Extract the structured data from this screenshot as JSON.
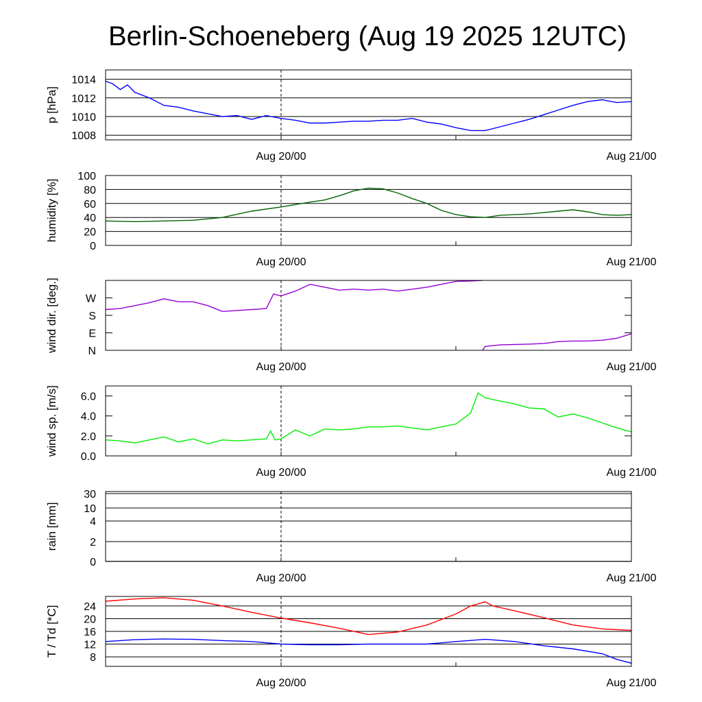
{
  "title": "Berlin-Schoeneberg (Aug 19 2025 12UTC)",
  "x_tick_labels": [
    "Aug 20/00",
    "Aug 21/00"
  ],
  "chart_data": [
    {
      "type": "line",
      "ylabel": "p [hPa]",
      "ylim": [
        1007.5,
        1015
      ],
      "yticks": [
        1008,
        1010,
        1012,
        1014
      ],
      "ytick_labels": [
        "1008",
        "1010",
        "1012",
        "1014"
      ],
      "grid": true,
      "x_unit": "hours since Aug 19 12UTC",
      "xlim": [
        0,
        36
      ],
      "series": [
        {
          "color": "#0000ff",
          "x": [
            0,
            0.5,
            1,
            1.5,
            2,
            3,
            4,
            5,
            6,
            7,
            8,
            9,
            10,
            11,
            12,
            13,
            14,
            15,
            16,
            17,
            18,
            19,
            20,
            21,
            22,
            23,
            24,
            25,
            26,
            27,
            28,
            29,
            30,
            31,
            32,
            33,
            34,
            35,
            36
          ],
          "y": [
            1013.8,
            1013.5,
            1012.9,
            1013.4,
            1012.6,
            1012.0,
            1011.2,
            1011.0,
            1010.6,
            1010.3,
            1010.0,
            1010.1,
            1009.7,
            1010.1,
            1009.8,
            1009.6,
            1009.3,
            1009.3,
            1009.4,
            1009.5,
            1009.5,
            1009.6,
            1009.6,
            1009.8,
            1009.4,
            1009.2,
            1008.8,
            1008.5,
            1008.5,
            1008.9,
            1009.3,
            1009.7,
            1010.2,
            1010.7,
            1011.2,
            1011.6,
            1011.8,
            1011.5,
            1011.6
          ]
        }
      ]
    },
    {
      "type": "line",
      "ylabel": "humidity [%]",
      "ylim": [
        0,
        100
      ],
      "yticks": [
        0,
        20,
        40,
        60,
        80,
        100
      ],
      "ytick_labels": [
        "0",
        "20",
        "40",
        "60",
        "80",
        "100"
      ],
      "grid": true,
      "xlim": [
        0,
        36
      ],
      "series": [
        {
          "color": "#006400",
          "x": [
            0,
            2,
            4,
            6,
            8,
            10,
            12,
            14,
            15,
            16,
            17,
            18,
            19,
            20,
            21,
            22,
            23,
            24,
            25,
            26,
            27,
            28,
            29,
            30,
            31,
            32,
            33,
            34,
            35,
            36
          ],
          "y": [
            35,
            34,
            35,
            36,
            40,
            49,
            55,
            62,
            65,
            71,
            78,
            82,
            81,
            75,
            67,
            60,
            50,
            44,
            41,
            40,
            43,
            44,
            45,
            47,
            49,
            51,
            48,
            44,
            43,
            44
          ]
        }
      ]
    },
    {
      "type": "line",
      "ylabel": "wind dir. [deg.]",
      "ylim": [
        0,
        360
      ],
      "yticks": [
        0,
        90,
        180,
        270
      ],
      "ytick_labels": [
        "N",
        "E",
        "S",
        "W"
      ],
      "grid": false,
      "xlim": [
        0,
        36
      ],
      "series": [
        {
          "color": "#9400d3",
          "x": [
            0,
            1,
            2,
            3,
            4,
            5,
            6,
            7,
            8,
            9,
            10,
            11,
            11.5,
            12,
            13,
            14,
            15,
            16,
            17,
            18,
            19,
            20,
            21,
            22,
            23,
            24,
            25,
            25.8
          ],
          "y": [
            210,
            215,
            230,
            245,
            265,
            250,
            250,
            230,
            200,
            205,
            210,
            215,
            290,
            280,
            305,
            340,
            325,
            310,
            315,
            310,
            315,
            305,
            315,
            325,
            340,
            355,
            357,
            360
          ]
        },
        {
          "color": "#9400d3",
          "x": [
            25.8,
            26,
            27,
            28,
            29,
            30,
            31,
            32,
            33,
            34,
            35,
            36
          ],
          "y": [
            0,
            20,
            28,
            30,
            32,
            35,
            45,
            48,
            48,
            52,
            62,
            85
          ]
        }
      ]
    },
    {
      "type": "line",
      "ylabel": "wind sp. [m/s]",
      "ylim": [
        0,
        7
      ],
      "yticks": [
        0,
        2,
        4,
        6
      ],
      "ytick_labels": [
        "0.0",
        "2.0",
        "4.0",
        "6.0"
      ],
      "grid": false,
      "xlim": [
        0,
        36
      ],
      "series": [
        {
          "color": "#00ee00",
          "x": [
            0,
            1,
            2,
            3,
            4,
            5,
            6,
            7,
            8,
            9,
            10,
            11,
            11.3,
            11.6,
            12,
            13,
            14,
            15,
            16,
            17,
            18,
            19,
            20,
            21,
            22,
            23,
            24,
            25,
            25.5,
            26,
            27,
            28,
            29,
            30,
            31,
            32,
            33,
            34,
            35,
            36
          ],
          "y": [
            1.6,
            1.5,
            1.3,
            1.6,
            1.9,
            1.4,
            1.7,
            1.2,
            1.6,
            1.5,
            1.6,
            1.7,
            2.5,
            1.6,
            1.7,
            2.6,
            2.0,
            2.7,
            2.6,
            2.7,
            2.9,
            2.9,
            3.0,
            2.8,
            2.6,
            2.9,
            3.2,
            4.3,
            6.3,
            5.8,
            5.5,
            5.2,
            4.8,
            4.7,
            3.9,
            4.2,
            3.8,
            3.3,
            2.8,
            2.4
          ]
        }
      ]
    },
    {
      "type": "line",
      "ylabel": "rain [mm]",
      "ylim": [
        0,
        30
      ],
      "yticks": [
        0,
        2,
        4,
        10,
        30
      ],
      "ytick_labels": [
        "0",
        "2",
        "4",
        "10",
        "30"
      ],
      "scale": "piecewise",
      "grid": true,
      "xlim": [
        0,
        36
      ],
      "series": [
        {
          "color": "#000000",
          "x": [
            0,
            36
          ],
          "y": [
            0,
            0
          ]
        }
      ]
    },
    {
      "type": "line",
      "ylabel": "T / Td [*C]",
      "ylim": [
        5,
        27
      ],
      "yticks": [
        8,
        12,
        16,
        20,
        24
      ],
      "ytick_labels": [
        "8",
        "12",
        "16",
        "20",
        "24"
      ],
      "grid": true,
      "xlim": [
        0,
        36
      ],
      "series": [
        {
          "color": "#ff0000",
          "x": [
            0,
            2,
            4,
            6,
            8,
            10,
            12,
            14,
            16,
            18,
            20,
            22,
            24,
            25,
            26,
            26.5,
            28,
            30,
            32,
            34,
            36
          ],
          "y": [
            25.5,
            26.2,
            26.6,
            25.8,
            24.0,
            22.0,
            20.2,
            18.7,
            17.0,
            15.0,
            15.8,
            18.0,
            21.5,
            24.0,
            25.3,
            24.0,
            22.5,
            20.3,
            18.0,
            16.8,
            16.3
          ]
        },
        {
          "color": "#0000ff",
          "x": [
            0,
            2,
            4,
            6,
            8,
            10,
            12,
            14,
            16,
            18,
            20,
            22,
            24,
            26,
            28,
            30,
            32,
            34,
            35,
            36
          ],
          "y": [
            12.8,
            13.4,
            13.6,
            13.5,
            13.1,
            12.8,
            12.0,
            11.8,
            11.8,
            12.0,
            12.0,
            12.0,
            12.8,
            13.5,
            12.8,
            11.5,
            10.5,
            9.0,
            7.2,
            6.0
          ]
        }
      ]
    }
  ]
}
